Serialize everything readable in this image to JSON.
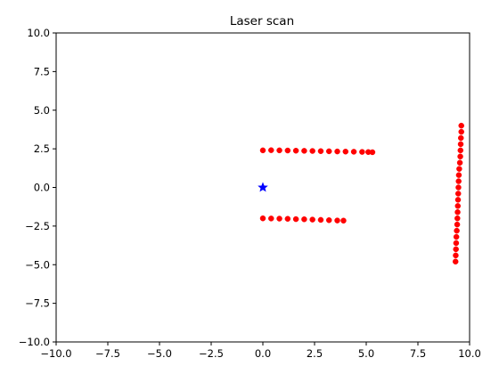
{
  "chart_data": {
    "type": "scatter",
    "title": "Laser scan",
    "xlabel": "",
    "ylabel": "",
    "xlim": [
      -10.0,
      10.0
    ],
    "ylim": [
      -10.0,
      10.0
    ],
    "grid": false,
    "xticks": [
      -10.0,
      -7.5,
      -5.0,
      -2.5,
      0.0,
      2.5,
      5.0,
      7.5,
      10.0
    ],
    "yticks": [
      -10.0,
      -7.5,
      -5.0,
      -2.5,
      0.0,
      2.5,
      5.0,
      7.5,
      10.0
    ],
    "xtick_labels": [
      "−10.0",
      "−7.5",
      "−5.0",
      "−2.5",
      "0.0",
      "2.5",
      "5.0",
      "7.5",
      "10.0"
    ],
    "ytick_labels": [
      "−10.0",
      "−7.5",
      "−5.0",
      "−2.5",
      "0.0",
      "2.5",
      "5.0",
      "7.5",
      "10.0"
    ],
    "series": [
      {
        "marker": "star",
        "color": "#0000ff",
        "points": [
          [
            0.0,
            0.0
          ]
        ]
      },
      {
        "marker": "circle",
        "color": "#ff0000",
        "points": [
          [
            0.0,
            2.4
          ],
          [
            0.4,
            2.41
          ],
          [
            0.8,
            2.4
          ],
          [
            1.2,
            2.39
          ],
          [
            1.6,
            2.38
          ],
          [
            2.0,
            2.37
          ],
          [
            2.4,
            2.36
          ],
          [
            2.8,
            2.35
          ],
          [
            3.2,
            2.34
          ],
          [
            3.6,
            2.33
          ],
          [
            4.0,
            2.32
          ],
          [
            4.4,
            2.31
          ],
          [
            4.8,
            2.3
          ],
          [
            5.1,
            2.29
          ],
          [
            5.3,
            2.28
          ],
          [
            0.0,
            -2.0
          ],
          [
            0.4,
            -2.01
          ],
          [
            0.8,
            -2.02
          ],
          [
            1.2,
            -2.03
          ],
          [
            1.6,
            -2.05
          ],
          [
            2.0,
            -2.06
          ],
          [
            2.4,
            -2.08
          ],
          [
            2.8,
            -2.1
          ],
          [
            3.2,
            -2.12
          ],
          [
            3.6,
            -2.14
          ],
          [
            3.9,
            -2.15
          ],
          [
            9.6,
            4.0
          ],
          [
            9.6,
            3.6
          ],
          [
            9.58,
            3.2
          ],
          [
            9.57,
            2.8
          ],
          [
            9.56,
            2.4
          ],
          [
            9.55,
            2.0
          ],
          [
            9.53,
            1.6
          ],
          [
            9.5,
            1.2
          ],
          [
            9.48,
            0.8
          ],
          [
            9.47,
            0.4
          ],
          [
            9.46,
            0.0
          ],
          [
            9.45,
            -0.4
          ],
          [
            9.44,
            -0.8
          ],
          [
            9.43,
            -1.2
          ],
          [
            9.42,
            -1.6
          ],
          [
            9.41,
            -2.0
          ],
          [
            9.4,
            -2.4
          ],
          [
            9.38,
            -2.8
          ],
          [
            9.36,
            -3.2
          ],
          [
            9.35,
            -3.6
          ],
          [
            9.34,
            -4.0
          ],
          [
            9.33,
            -4.4
          ],
          [
            9.32,
            -4.8
          ]
        ]
      }
    ]
  }
}
